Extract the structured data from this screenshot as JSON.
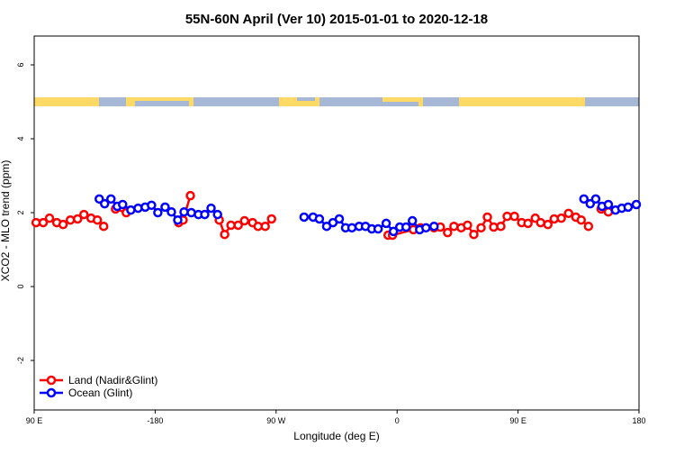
{
  "chart_data": {
    "type": "line",
    "title": "55N-60N April (Ver 10)   2015-01-01 to 2020-12-18",
    "x_label": "Longitude (deg E)",
    "y_label": "XCO2 - MLO trend (ppm)",
    "xlim": [
      -270,
      180
    ],
    "ylim": [
      -3.34,
      6.78
    ],
    "xticks": [
      {
        "value": -270,
        "label": "90 E"
      },
      -180,
      {
        "value": -90,
        "label": "90 W"
      },
      0,
      {
        "value": 90,
        "label": "90 E"
      },
      180
    ],
    "yticks": [
      -2,
      0,
      2,
      4,
      6
    ],
    "legend": "bottom-left",
    "series": [
      {
        "name": "Land (Nadir&Glint)",
        "color": "#ff0000",
        "x": [
          -268.6,
          -263.3,
          -258.6,
          -253.2,
          -248.5,
          -243.1,
          -237.7,
          -233.0,
          -227.7,
          -223.0,
          -218.3,
          null,
          -209.5,
          -201.5,
          null,
          -162.5,
          -159.2,
          -153.8,
          null,
          -132.3,
          -128.3,
          -123.6,
          -118.2,
          -113.5,
          -107.5,
          -103.4,
          -98.1,
          -93.4,
          null,
          -6.7,
          -3.4,
          12.1,
          17.5,
          27.5,
          32.2,
          37.6,
          42.3,
          47.7,
          52.4,
          57.1,
          62.5,
          67.2,
          71.9,
          77.2,
          81.9,
          87.3,
          92.7,
          97.4,
          102.8,
          106.8,
          112.2,
          116.9,
          122.2,
          127.6,
          133.0,
          137.0,
          142.4,
          null,
          151.8,
          157.2
        ],
        "values": [
          1.73,
          1.73,
          1.85,
          1.73,
          1.68,
          1.8,
          1.83,
          1.95,
          1.85,
          1.8,
          1.63,
          null,
          2.1,
          2.0,
          null,
          1.73,
          1.8,
          2.46,
          null,
          1.8,
          1.41,
          1.66,
          1.66,
          1.78,
          1.73,
          1.63,
          1.63,
          1.83,
          null,
          1.39,
          1.39,
          1.54,
          1.59,
          1.59,
          1.61,
          1.46,
          1.63,
          1.59,
          1.66,
          1.41,
          1.59,
          1.88,
          1.61,
          1.63,
          1.9,
          1.9,
          1.73,
          1.71,
          1.85,
          1.73,
          1.68,
          1.83,
          1.85,
          1.98,
          1.88,
          1.8,
          1.63,
          null,
          2.1,
          2.02
        ]
      },
      {
        "name": "Ocean (Glint)",
        "color": "#0000ff",
        "x": [
          -221.6,
          -217.6,
          -212.9,
          -208.2,
          -204.2,
          -198.1,
          -192.7,
          -187.4,
          -182.7,
          -178.0,
          -172.6,
          -167.9,
          -163.2,
          -158.5,
          -153.1,
          -147.8,
          -143.1,
          -138.4,
          -133.6,
          null,
          -69.2,
          -62.5,
          -57.8,
          -52.4,
          -47.7,
          -43.0,
          -38.3,
          -33.6,
          -28.2,
          -23.5,
          -18.8,
          -14.1,
          -8.1,
          -2.7,
          2.0,
          6.7,
          11.4,
          16.8,
          21.5,
          27.5,
          null,
          139.0,
          143.7,
          147.8,
          152.5,
          157.2,
          162.5,
          167.2,
          171.9,
          178.0
        ],
        "values": [
          2.37,
          2.24,
          2.37,
          2.17,
          2.22,
          2.07,
          2.12,
          2.15,
          2.2,
          2.0,
          2.15,
          2.02,
          1.8,
          2.02,
          2.0,
          1.95,
          1.95,
          2.12,
          1.95,
          null,
          1.88,
          1.88,
          1.83,
          1.63,
          1.73,
          1.83,
          1.59,
          1.59,
          1.63,
          1.63,
          1.56,
          1.56,
          1.71,
          1.49,
          1.61,
          1.61,
          1.78,
          1.54,
          1.59,
          1.63,
          null,
          2.37,
          2.24,
          2.37,
          2.17,
          2.22,
          2.07,
          2.12,
          2.15,
          2.22
        ]
      }
    ]
  }
}
